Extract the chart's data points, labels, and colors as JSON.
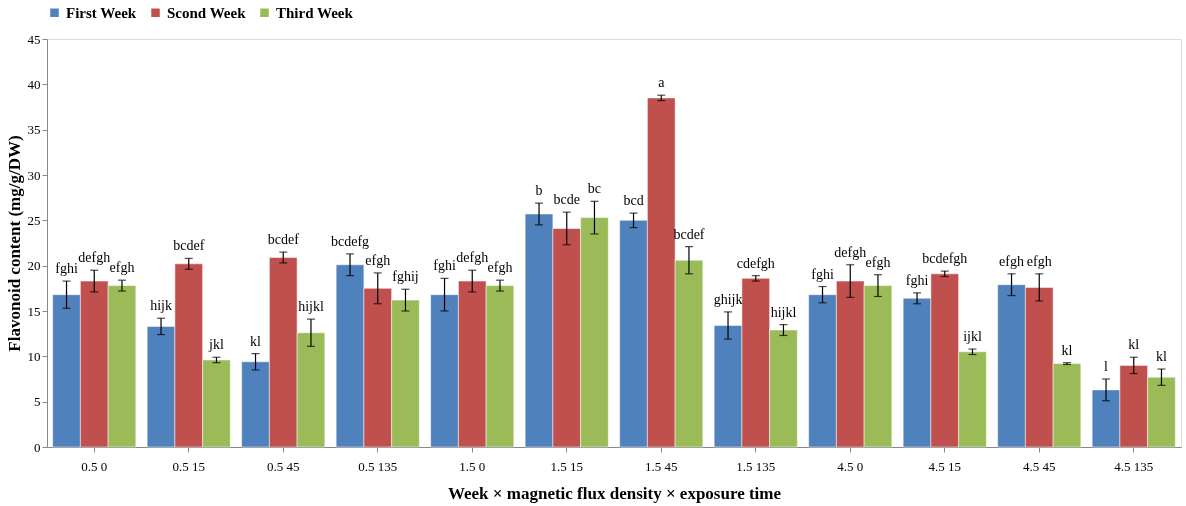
{
  "chart_data": {
    "type": "bar",
    "xlabel": "Week × magnetic flux density × exposure time",
    "ylabel": "Flavonoid content (mg/g/DW)",
    "categories": [
      "0.5 0",
      "0.5 15",
      "0.5 45",
      "0.5 135",
      "1.5 0",
      "1.5 15",
      "1.5 45",
      "1.5 135",
      "4.5 0",
      "4.5 15",
      "4.5 45",
      "4.5 135"
    ],
    "ylim": [
      0,
      45
    ],
    "yticks": [
      0,
      5,
      10,
      15,
      20,
      25,
      30,
      35,
      40,
      45
    ],
    "grid": false,
    "legend": "top",
    "series": [
      {
        "name": "First Week",
        "color": "#4f81bd",
        "values": [
          16.8,
          13.3,
          9.4,
          20.1,
          16.8,
          25.7,
          25.0,
          13.4,
          16.8,
          16.4,
          17.9,
          6.3
        ],
        "errors": [
          1.5,
          0.9,
          0.9,
          1.2,
          1.8,
          1.2,
          0.8,
          1.5,
          0.9,
          0.6,
          1.2,
          1.2
        ],
        "value_labels": [
          "fghi",
          "hijk",
          "kl",
          "bcdefg",
          "fghi",
          "b",
          "bcd",
          "ghijk",
          "fghi",
          "fghi",
          "efgh",
          "l"
        ]
      },
      {
        "name": "Scond Week",
        "color": "#c0504d",
        "values": [
          18.3,
          20.2,
          20.9,
          17.5,
          18.3,
          24.1,
          38.5,
          18.6,
          18.3,
          19.1,
          17.6,
          9.0
        ],
        "errors": [
          1.2,
          0.6,
          0.6,
          1.7,
          1.2,
          1.8,
          0.3,
          0.3,
          1.8,
          0.3,
          1.5,
          0.9
        ],
        "value_labels": [
          "defgh",
          "bcdef",
          "bcdef",
          "efgh",
          "defgh",
          "bcde",
          "a",
          "cdefgh",
          "defgh",
          "bcdefgh",
          "efgh",
          "kl"
        ]
      },
      {
        "name": "Third Week",
        "color": "#9bbb59",
        "values": [
          17.8,
          9.6,
          12.6,
          16.2,
          17.8,
          25.3,
          20.6,
          12.9,
          17.8,
          10.5,
          9.2,
          7.7
        ],
        "errors": [
          0.6,
          0.3,
          1.5,
          1.2,
          0.6,
          1.8,
          1.5,
          0.6,
          1.2,
          0.3,
          0.1,
          0.9
        ],
        "value_labels": [
          "efgh",
          "jkl",
          "hijkl",
          "fghij",
          "efgh",
          "bc",
          "bcdef",
          "hijkl",
          "efgh",
          "ijkl",
          "kl",
          "kl"
        ]
      }
    ]
  }
}
